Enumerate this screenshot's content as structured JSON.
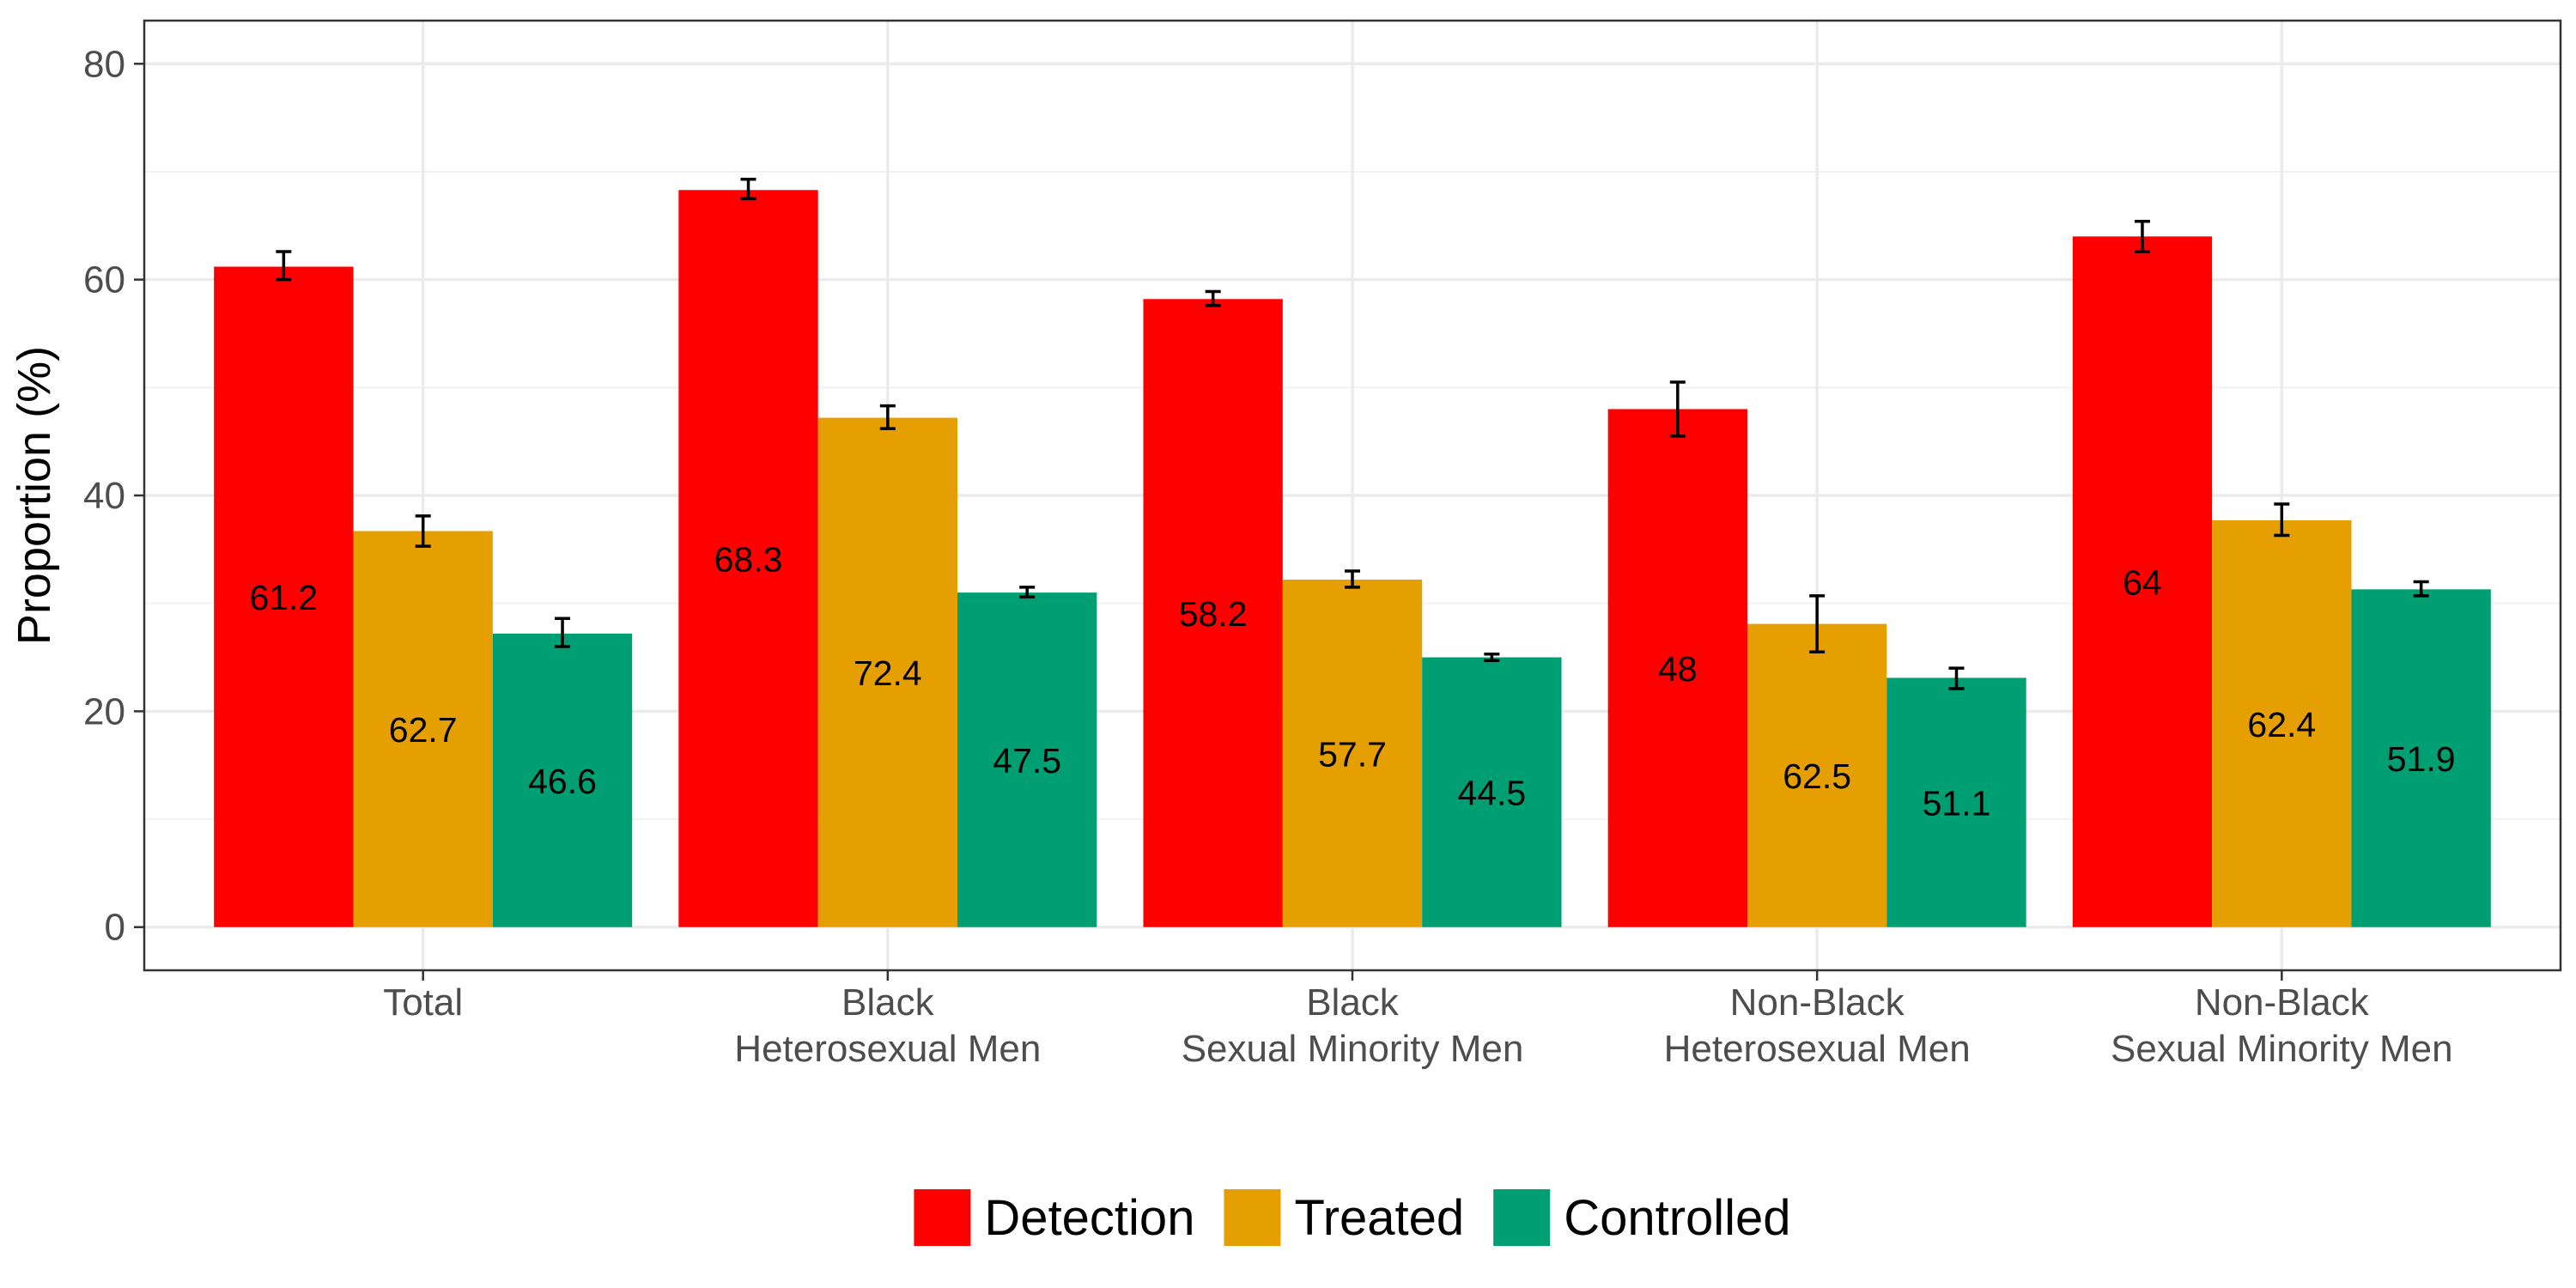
{
  "chart_data": {
    "type": "bar",
    "title": "",
    "xlabel": "",
    "ylabel": "Proportion (%)",
    "ylim": [
      -4,
      84
    ],
    "yticks": [
      0,
      20,
      40,
      60,
      80
    ],
    "grid": true,
    "legend_position": "bottom",
    "categories": [
      [
        "Total"
      ],
      [
        "Black",
        "Heterosexual Men"
      ],
      [
        "Black",
        "Sexual Minority Men"
      ],
      [
        "Non-Black",
        "Heterosexual Men"
      ],
      [
        "Non-Black",
        "Sexual Minority Men"
      ]
    ],
    "series": [
      {
        "name": "Detection",
        "color": "#ff0000",
        "values": [
          61.2,
          68.3,
          58.2,
          48.0,
          64.0
        ],
        "error_low": [
          60.0,
          67.5,
          57.6,
          45.5,
          62.6
        ],
        "error_high": [
          62.6,
          69.3,
          58.9,
          50.5,
          65.4
        ],
        "labels": [
          "61.2",
          "68.3",
          "58.2",
          "48",
          "64"
        ]
      },
      {
        "name": "Treated",
        "color": "#e69f00",
        "values": [
          36.7,
          47.2,
          32.2,
          28.1,
          37.7
        ],
        "error_low": [
          35.3,
          46.2,
          31.5,
          25.5,
          36.3
        ],
        "error_high": [
          38.1,
          48.3,
          33.0,
          30.7,
          39.2
        ],
        "labels": [
          "62.7",
          "72.4",
          "57.7",
          "62.5",
          "62.4"
        ]
      },
      {
        "name": "Controlled",
        "color": "#009e73",
        "values": [
          27.2,
          31.0,
          25.0,
          23.1,
          31.3
        ],
        "error_low": [
          26.0,
          30.6,
          24.7,
          22.1,
          30.7
        ],
        "error_high": [
          28.6,
          31.5,
          25.3,
          24.0,
          32.0
        ],
        "labels": [
          "46.6",
          "47.5",
          "44.5",
          "51.1",
          "51.9"
        ]
      }
    ]
  }
}
